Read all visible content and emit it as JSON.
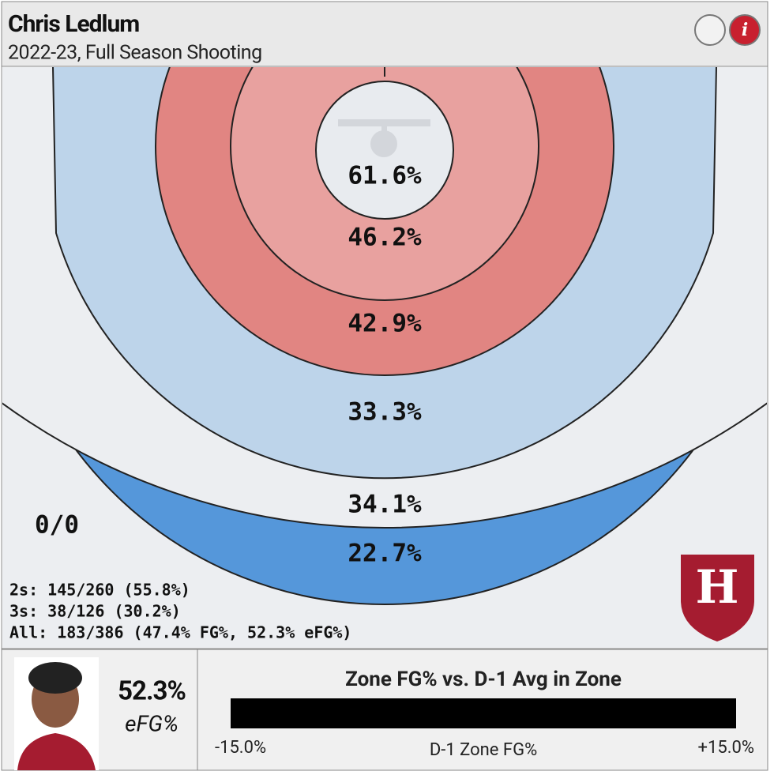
{
  "header": {
    "title": "Chris Ledlum",
    "subtitle": "2022-23, Full Season Shooting",
    "info_icon": "i"
  },
  "zones": [
    "61.6%",
    "46.2%",
    "42.9%",
    "33.3%",
    "34.1%",
    "22.7%",
    "0/0"
  ],
  "stats": [
    "2s: 145/260 (55.8%)",
    "3s: 38/126 (30.2%)",
    "All: 183/386 (47.4% FG%, 52.3% eFG%)"
  ],
  "logo_letter": "H",
  "player": {
    "value": "52.3%",
    "label": "eFG%"
  },
  "legend": {
    "title": "Zone FG% vs. D-1 Avg in Zone",
    "min": "-15.0%",
    "axis_label": "D-1 Zone FG%",
    "max": "+15.0%"
  }
}
